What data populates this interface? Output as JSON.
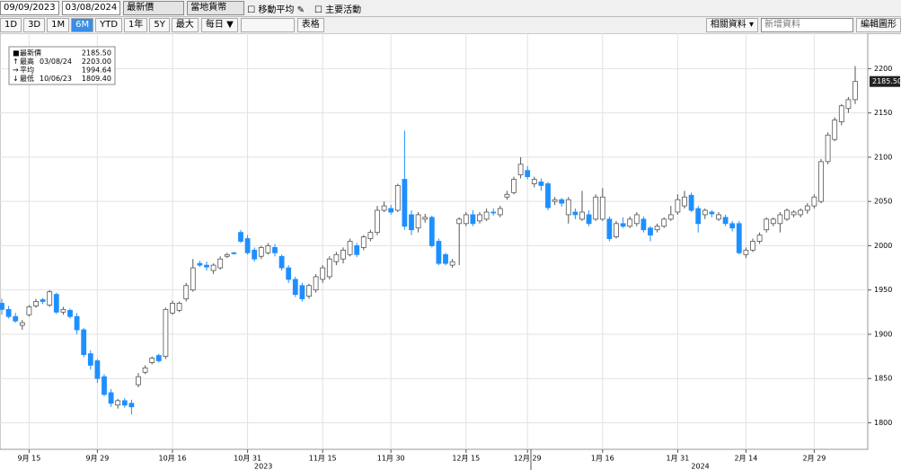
{
  "toolbar": {
    "start_date": "09/09/2023",
    "end_date": "03/08/2024",
    "price_field": "最新價",
    "currency": "當地貨幣",
    "moving_average": "移動平均",
    "key_events": "主要活動",
    "periods": [
      "1D",
      "3D",
      "1M",
      "6M",
      "YTD",
      "1年",
      "5Y",
      "最大"
    ],
    "frequency": "每日 ▼",
    "table": "表格",
    "related": "相關資料 ▾",
    "add_data": "新增資料",
    "edit_chart": "編輯圖形"
  },
  "chart_data": {
    "type": "candlestick",
    "categories": [
      null,
      null,
      null,
      null,
      "9月 15",
      null,
      null,
      null,
      null,
      null,
      null,
      null,
      null,
      null,
      "9月 29",
      null,
      null,
      null,
      null,
      null,
      null,
      null,
      null,
      null,
      null,
      "10月 16",
      null,
      null,
      null,
      null,
      null,
      null,
      null,
      null,
      null,
      null,
      "10月 31",
      null,
      null,
      null,
      null,
      null,
      null,
      null,
      null,
      null,
      null,
      "11月 15",
      null,
      null,
      null,
      null,
      null,
      null,
      null,
      null,
      null,
      "11月 30",
      null,
      null,
      null,
      null,
      null,
      null,
      null,
      null,
      null,
      null,
      "12月 15",
      null,
      null,
      null,
      null,
      null,
      null,
      null,
      null,
      "12月 29",
      null,
      null,
      null,
      null,
      null,
      null,
      null,
      null,
      null,
      null,
      "1月 16",
      null,
      null,
      null,
      null,
      null,
      null,
      null,
      null,
      null,
      null,
      "1月 31",
      null,
      null,
      null,
      null,
      null,
      null,
      null,
      null,
      null,
      "2月 14",
      null,
      null,
      null,
      null,
      null,
      null,
      null,
      null,
      null,
      "2月 29",
      null,
      null,
      null,
      null,
      null,
      null
    ],
    "years": [
      "2023",
      "2024"
    ],
    "open": [
      1935,
      1928,
      1920,
      1910,
      1922,
      1932,
      1939,
      1933,
      1945,
      1925,
      1927,
      1920,
      1905,
      1878,
      1870,
      1852,
      1834,
      1820,
      1825,
      1822,
      1843,
      1857,
      1868,
      1876,
      1875,
      1924,
      1927,
      1940,
      1950,
      1980,
      1978,
      1972,
      1975,
      1988,
      1992,
      2015,
      2008,
      1995,
      1988,
      1992,
      1998,
      1988,
      1975,
      1962,
      1955,
      1943,
      1950,
      1962,
      1965,
      1982,
      1985,
      1990,
      2000,
      1998,
      2008,
      2015,
      2040,
      2042,
      2040,
      2075,
      2035,
      2020,
      2030,
      2032,
      2005,
      1990,
      1978,
      2025,
      2025,
      2035,
      2028,
      2030,
      2038,
      2035,
      2055,
      2060,
      2080,
      2085,
      2070,
      2072,
      2070,
      2050,
      2052,
      2035,
      2038,
      2030,
      2035,
      2030,
      2030,
      2030,
      2010,
      2025,
      2022,
      2025,
      2030,
      2020,
      2018,
      2022,
      2030,
      2038,
      2045,
      2057,
      2042,
      2035,
      2038,
      2030,
      2032,
      2025,
      2025,
      1990,
      1995,
      2005,
      2018,
      2025,
      2025,
      2030,
      2035,
      2035,
      2040,
      2045,
      2050,
      2095,
      2120,
      2140,
      2155,
      2165
    ],
    "high": [
      1940,
      1932,
      1924,
      1916,
      1933,
      1940,
      1941,
      1950,
      1947,
      1931,
      1929,
      1924,
      1907,
      1882,
      1872,
      1855,
      1838,
      1827,
      1828,
      1826,
      1856,
      1865,
      1875,
      1878,
      1930,
      1938,
      1937,
      1958,
      1985,
      1983,
      1982,
      1980,
      1988,
      1992,
      1993,
      2018,
      2012,
      1998,
      2000,
      2003,
      2002,
      1990,
      1978,
      1965,
      1958,
      1957,
      1968,
      1978,
      1988,
      1993,
      1998,
      2008,
      2003,
      2012,
      2018,
      2045,
      2050,
      2046,
      2070,
      2130,
      2040,
      2038,
      2036,
      2034,
      2008,
      1992,
      1985,
      2032,
      2038,
      2040,
      2038,
      2042,
      2042,
      2045,
      2062,
      2078,
      2100,
      2090,
      2078,
      2076,
      2072,
      2055,
      2054,
      2055,
      2042,
      2062,
      2040,
      2058,
      2065,
      2033,
      2028,
      2032,
      2033,
      2038,
      2033,
      2022,
      2025,
      2032,
      2045,
      2058,
      2062,
      2060,
      2045,
      2042,
      2040,
      2038,
      2035,
      2028,
      2028,
      1998,
      2008,
      2015,
      2032,
      2032,
      2038,
      2042,
      2040,
      2042,
      2048,
      2058,
      2098,
      2128,
      2145,
      2160,
      2168,
      2203
    ],
    "low": [
      1922,
      1918,
      1913,
      1905,
      1920,
      1930,
      1934,
      1931,
      1923,
      1922,
      1918,
      1900,
      1874,
      1860,
      1845,
      1830,
      1818,
      1816,
      1817,
      1809.4,
      1840,
      1855,
      1866,
      1868,
      1872,
      1922,
      1925,
      1937,
      1948,
      1976,
      1972,
      1968,
      1973,
      1986,
      1990,
      2003,
      1990,
      1982,
      1985,
      1990,
      1988,
      1972,
      1958,
      1942,
      1937,
      1940,
      1947,
      1958,
      1962,
      1978,
      1980,
      1988,
      1987,
      1995,
      2005,
      2012,
      2038,
      2035,
      2038,
      2018,
      2012,
      2015,
      2026,
      1998,
      1978,
      1978,
      1975,
      1978,
      2022,
      2022,
      2025,
      2028,
      2034,
      2032,
      2052,
      2058,
      2076,
      2075,
      2066,
      2062,
      2040,
      2046,
      2044,
      2025,
      2030,
      2028,
      2022,
      2028,
      2028,
      2005,
      2008,
      2020,
      2020,
      2022,
      2015,
      2005,
      2015,
      2020,
      2028,
      2035,
      2042,
      2038,
      2015,
      2030,
      2032,
      2028,
      2022,
      2016,
      1990,
      1986,
      1993,
      2002,
      2015,
      2022,
      2015,
      2028,
      2032,
      2032,
      2036,
      2042,
      2048,
      2092,
      2118,
      2136,
      2150,
      2160
    ],
    "close": [
      1928,
      1920,
      1915,
      1913,
      1931,
      1937,
      1937,
      1948,
      1925,
      1928,
      1920,
      1905,
      1877,
      1865,
      1850,
      1832,
      1822,
      1825,
      1820,
      1818,
      1852,
      1862,
      1873,
      1870,
      1928,
      1935,
      1935,
      1955,
      1975,
      1978,
      1976,
      1978,
      1985,
      1990,
      1991,
      2005,
      1992,
      1985,
      1998,
      2000,
      1992,
      1975,
      1962,
      1945,
      1940,
      1955,
      1965,
      1975,
      1985,
      1990,
      1995,
      2005,
      1990,
      2010,
      2015,
      2040,
      2045,
      2038,
      2068,
      2022,
      2018,
      2035,
      2032,
      2000,
      1980,
      1980,
      1982,
      2030,
      2035,
      2025,
      2035,
      2038,
      2037,
      2042,
      2058,
      2075,
      2092,
      2078,
      2075,
      2068,
      2043,
      2052,
      2048,
      2052,
      2035,
      2038,
      2025,
      2055,
      2055,
      2008,
      2025,
      2022,
      2030,
      2035,
      2018,
      2012,
      2022,
      2030,
      2035,
      2052,
      2055,
      2040,
      2025,
      2040,
      2036,
      2035,
      2025,
      2020,
      1992,
      1995,
      2005,
      2012,
      2030,
      2030,
      2035,
      2040,
      2038,
      2040,
      2045,
      2055,
      2095,
      2125,
      2142,
      2158,
      2165,
      2185.5
    ],
    "up_color": "#ffffff",
    "down_color": "#1e8fff",
    "ylim": [
      1770,
      2240
    ],
    "yticks": [
      1800,
      1850,
      1900,
      1950,
      2000,
      2050,
      2100,
      2150,
      2200
    ],
    "grid": true,
    "legend": [
      {
        "name": "最新價",
        "value": {
          "value": 2185.5,
          "label": "2185.50"
        }
      },
      {
        "name": "最高",
        "date": "03/08/24",
        "value": {
          "value": 2203,
          "label": "2203.00"
        }
      },
      {
        "name": "平均",
        "value": {
          "value": 1994.64,
          "label": "1994.64"
        }
      },
      {
        "name": "最低",
        "date": "10/06/23",
        "value": {
          "value": 1809.4,
          "label": "1809.40"
        }
      }
    ]
  }
}
